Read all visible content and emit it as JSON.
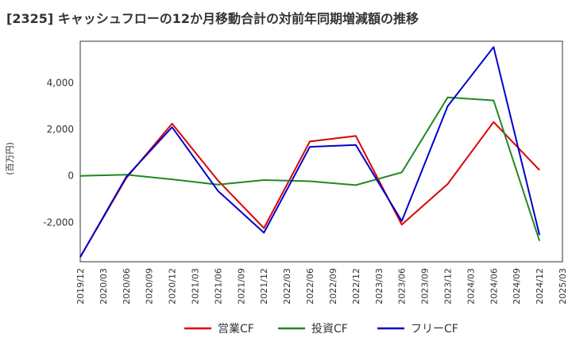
{
  "title": "[2325]  キャッシュフローの12か月移動合計の対前年同期増減額の推移",
  "chart_data": {
    "type": "line",
    "ylabel": "(百万円)",
    "categories": [
      "2019/12",
      "2020/03",
      "2020/06",
      "2020/09",
      "2020/12",
      "2021/03",
      "2021/06",
      "2021/09",
      "2021/12",
      "2022/03",
      "2022/06",
      "2022/09",
      "2022/12",
      "2023/03",
      "2023/06",
      "2023/09",
      "2023/12",
      "2024/03",
      "2024/06",
      "2024/09",
      "2024/12",
      "2025/03"
    ],
    "ylim": [
      -3700,
      5800
    ],
    "yticks": [
      -2000,
      0,
      2000,
      4000
    ],
    "ytick_labels": [
      "-2,000",
      "0",
      "2,000",
      "4,000"
    ],
    "grid": true,
    "legend_position": "bottom",
    "series": [
      {
        "name": "営業CF",
        "color": "#dd0000",
        "points": [
          [
            0,
            -3500
          ],
          [
            2,
            -100
          ],
          [
            4,
            2250
          ],
          [
            6,
            -200
          ],
          [
            8,
            -2250
          ],
          [
            10,
            1480
          ],
          [
            12,
            1720
          ],
          [
            14,
            -2100
          ],
          [
            16,
            -350
          ],
          [
            18,
            2320
          ],
          [
            20,
            250
          ]
        ]
      },
      {
        "name": "投資CF",
        "color": "#228822",
        "points": [
          [
            0,
            0
          ],
          [
            2,
            50
          ],
          [
            4,
            -150
          ],
          [
            6,
            -380
          ],
          [
            8,
            -180
          ],
          [
            10,
            -230
          ],
          [
            12,
            -400
          ],
          [
            14,
            150
          ],
          [
            16,
            3380
          ],
          [
            18,
            3250
          ],
          [
            20,
            -2800
          ]
        ]
      },
      {
        "name": "フリーCF",
        "color": "#0000cc",
        "points": [
          [
            0,
            -3500
          ],
          [
            2,
            -50
          ],
          [
            4,
            2100
          ],
          [
            6,
            -650
          ],
          [
            8,
            -2450
          ],
          [
            10,
            1250
          ],
          [
            12,
            1330
          ],
          [
            14,
            -1950
          ],
          [
            16,
            3000
          ],
          [
            18,
            5550
          ],
          [
            20,
            -2550
          ]
        ]
      }
    ]
  }
}
